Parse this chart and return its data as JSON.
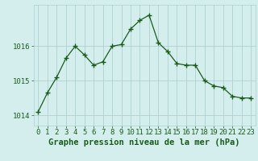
{
  "x": [
    0,
    1,
    2,
    3,
    4,
    5,
    6,
    7,
    8,
    9,
    10,
    11,
    12,
    13,
    14,
    15,
    16,
    17,
    18,
    19,
    20,
    21,
    22,
    23
  ],
  "y": [
    1014.1,
    1014.65,
    1015.1,
    1015.65,
    1016.0,
    1015.75,
    1015.45,
    1015.55,
    1016.0,
    1016.05,
    1016.5,
    1016.75,
    1016.9,
    1016.1,
    1015.85,
    1015.5,
    1015.45,
    1015.45,
    1015.0,
    1014.85,
    1014.8,
    1014.55,
    1014.5,
    1014.5
  ],
  "line_color": "#1a5c1a",
  "marker": "+",
  "marker_size": 4,
  "marker_lw": 1.0,
  "line_width": 0.9,
  "bg_color": "#d4eeee",
  "grid_color": "#b0d0d0",
  "xlabel": "Graphe pression niveau de la mer (hPa)",
  "xlabel_fontsize": 7.5,
  "ytick_labels": [
    "1014",
    "1015",
    "1016"
  ],
  "ytick_values": [
    1014,
    1015,
    1016
  ],
  "ylim": [
    1013.7,
    1017.2
  ],
  "xlim": [
    -0.5,
    23.5
  ],
  "xtick_labels": [
    "0",
    "1",
    "2",
    "3",
    "4",
    "5",
    "6",
    "7",
    "8",
    "9",
    "10",
    "11",
    "12",
    "13",
    "14",
    "15",
    "16",
    "17",
    "18",
    "19",
    "20",
    "21",
    "22",
    "23"
  ],
  "tick_fontsize": 6.5
}
